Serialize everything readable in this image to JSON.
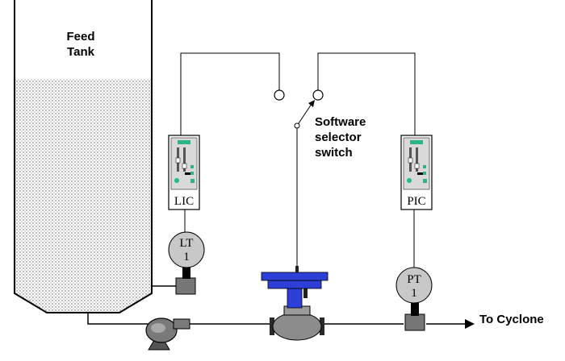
{
  "tank": {
    "title_line1": "Feed",
    "title_line2": "Tank"
  },
  "controllers": {
    "level": "LIC",
    "pressure": "PIC"
  },
  "transmitters": {
    "level": {
      "tag": "LT",
      "number": "1"
    },
    "pressure": {
      "tag": "PT",
      "number": "1"
    }
  },
  "switch": {
    "line1": "Software",
    "line2": "selector",
    "line3": "switch"
  },
  "outlet": {
    "label": "To Cyclone"
  },
  "colors": {
    "valve_actuator": "#2d3fd6",
    "valve_body": "#8c8c8c",
    "controller_accent": "#2bb38a",
    "slurry_fill": "#e6e6e6"
  }
}
